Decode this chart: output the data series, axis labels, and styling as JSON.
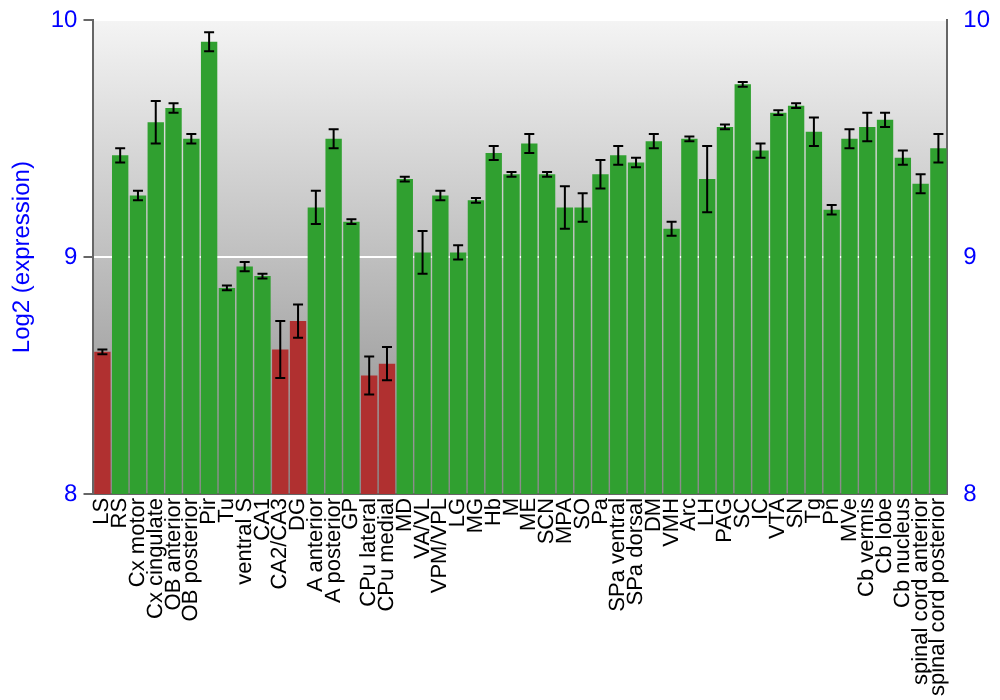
{
  "chart_data": {
    "type": "bar",
    "ylabel": "Log2 (expression)",
    "categories": [
      "LS",
      "RS",
      "Cx motor",
      "Cx cingulate",
      "OB anterior",
      "OB posterior",
      "Pir",
      "Tu",
      "ventral S",
      "CA1",
      "CA2/CA3",
      "DG",
      "A anterior",
      "A posterior",
      "GP",
      "CPu lateral",
      "CPu medial",
      "MD",
      "VA/VL",
      "VPM/VPL",
      "LG",
      "MG",
      "Hb",
      "M",
      "ME",
      "SCN",
      "MPA",
      "SO",
      "Pa",
      "SPa ventral",
      "SPa dorsal",
      "DM",
      "VMH",
      "Arc",
      "LH",
      "PAG",
      "SC",
      "IC",
      "VTA",
      "SN",
      "Tg",
      "Pn",
      "MVe",
      "Cb vermis",
      "Cb lobe",
      "Cb nucleus",
      "spinal cord anterior",
      "spinal cord posterior"
    ],
    "values": [
      8.6,
      9.43,
      9.26,
      9.57,
      9.63,
      9.5,
      9.91,
      8.87,
      8.96,
      8.92,
      8.61,
      8.73,
      9.21,
      9.5,
      9.15,
      8.5,
      8.55,
      9.33,
      9.02,
      9.26,
      9.02,
      9.24,
      9.44,
      9.35,
      9.48,
      9.35,
      9.21,
      9.21,
      9.35,
      9.43,
      9.4,
      9.49,
      9.12,
      9.5,
      9.33,
      9.55,
      9.73,
      9.45,
      9.61,
      9.64,
      9.53,
      9.2,
      9.5,
      9.55,
      9.58,
      9.42,
      9.31,
      9.46
    ],
    "errors": [
      0.01,
      0.03,
      0.02,
      0.09,
      0.02,
      0.02,
      0.04,
      0.01,
      0.02,
      0.01,
      0.12,
      0.07,
      0.07,
      0.04,
      0.01,
      0.08,
      0.07,
      0.01,
      0.09,
      0.02,
      0.03,
      0.01,
      0.03,
      0.01,
      0.04,
      0.01,
      0.09,
      0.06,
      0.06,
      0.04,
      0.02,
      0.03,
      0.03,
      0.01,
      0.14,
      0.01,
      0.01,
      0.03,
      0.01,
      0.01,
      0.06,
      0.02,
      0.04,
      0.06,
      0.03,
      0.03,
      0.04,
      0.06
    ],
    "colors": [
      "#b03030",
      "#30a030",
      "#30a030",
      "#30a030",
      "#30a030",
      "#30a030",
      "#30a030",
      "#30a030",
      "#30a030",
      "#30a030",
      "#b03030",
      "#b03030",
      "#30a030",
      "#30a030",
      "#30a030",
      "#b03030",
      "#b03030",
      "#30a030",
      "#30a030",
      "#30a030",
      "#30a030",
      "#30a030",
      "#30a030",
      "#30a030",
      "#30a030",
      "#30a030",
      "#30a030",
      "#30a030",
      "#30a030",
      "#30a030",
      "#30a030",
      "#30a030",
      "#30a030",
      "#30a030",
      "#30a030",
      "#30a030",
      "#30a030",
      "#30a030",
      "#30a030",
      "#30a030",
      "#30a030",
      "#30a030",
      "#30a030",
      "#30a030",
      "#30a030",
      "#30a030",
      "#30a030",
      "#30a030"
    ],
    "ylim": [
      8,
      10
    ],
    "yticks": [
      8,
      9,
      10
    ],
    "y2lim": [
      8,
      10
    ],
    "y2ticks": [
      8,
      9,
      10
    ],
    "grid": "y"
  }
}
